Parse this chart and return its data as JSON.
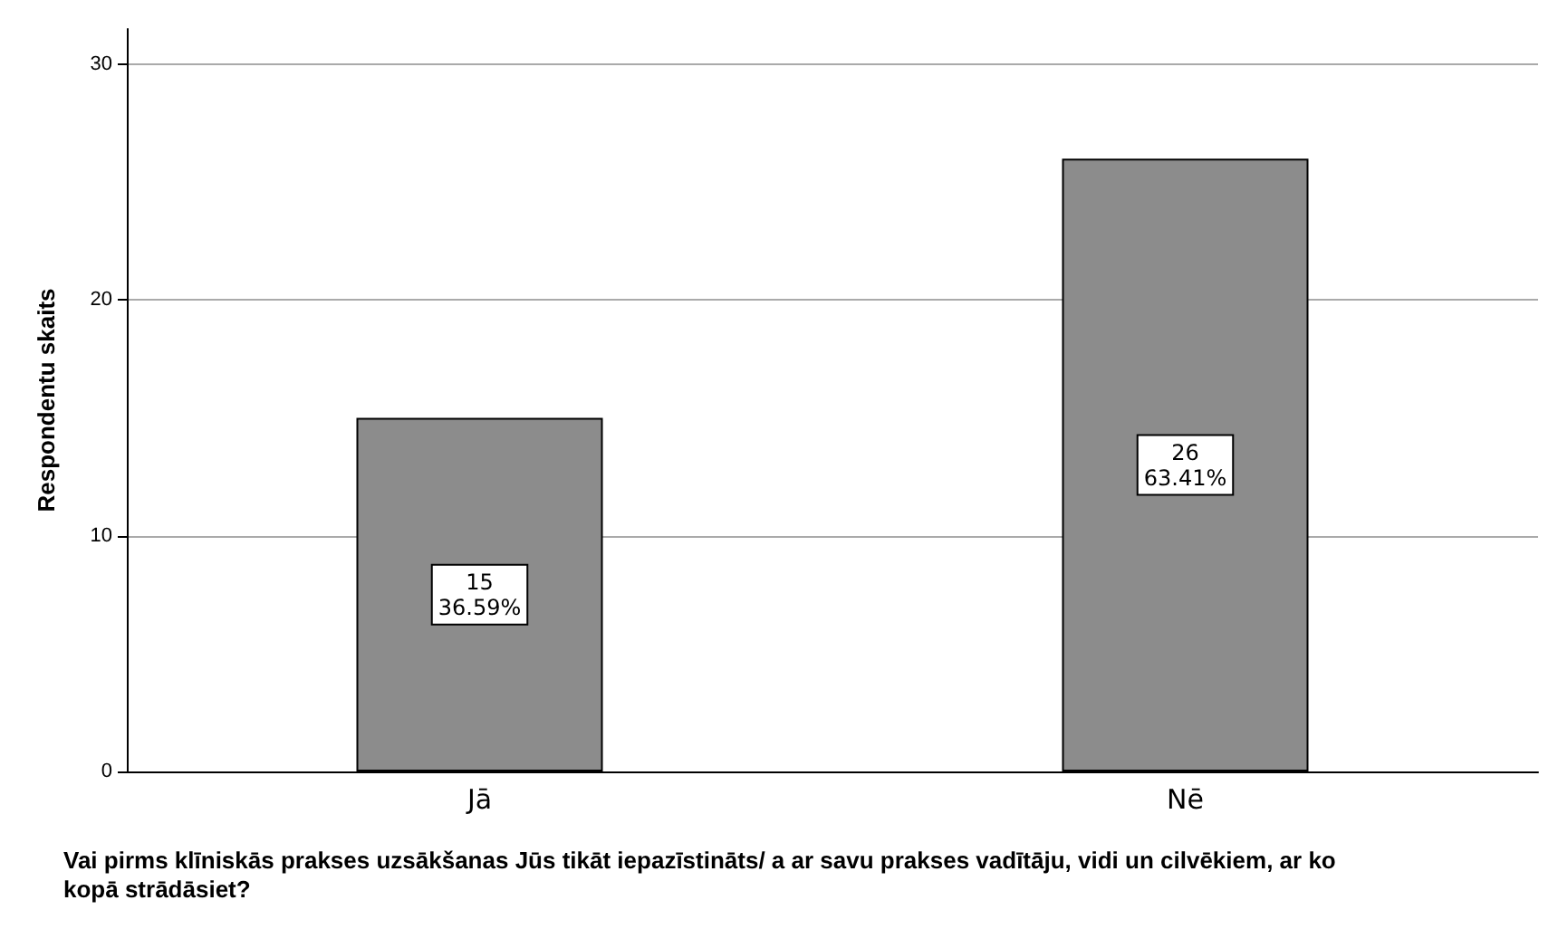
{
  "chart_data": {
    "type": "bar",
    "xlabel": "Vai pirms klīniskās prakses uzsākšanas Jūs tikāt iepazīstināts/ a ar savu prakses vadītāju, vidi un cilvēkiem, ar ko kopā strādāsiet?",
    "ylabel": "Respondentu skaits",
    "categories": [
      "Jā",
      "Nē"
    ],
    "values": [
      15,
      26
    ],
    "value_labels": [
      "15\n36.59%",
      "26\n63.41%"
    ],
    "color": "#8c8c8c",
    "ylim": [
      0,
      31.5
    ],
    "yticks": [
      0,
      10,
      20,
      30
    ],
    "grid": "y"
  }
}
